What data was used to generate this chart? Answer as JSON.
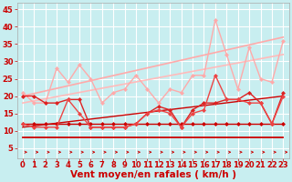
{
  "background_color": "#c8eef0",
  "grid_color": "#ffffff",
  "xlabel": "Vent moyen/en rafales ( km/h )",
  "xlabel_color": "#cc0000",
  "xlabel_fontsize": 7.5,
  "tick_color": "#cc0000",
  "tick_fontsize": 6,
  "ylim": [
    2,
    47
  ],
  "xlim": [
    -0.5,
    23.5
  ],
  "yticks": [
    5,
    10,
    15,
    20,
    25,
    30,
    35,
    40,
    45
  ],
  "xticks": [
    0,
    1,
    2,
    3,
    4,
    5,
    6,
    7,
    8,
    9,
    10,
    11,
    12,
    13,
    14,
    15,
    16,
    17,
    18,
    19,
    20,
    21,
    22,
    23
  ],
  "lines": [
    {
      "x": [
        0,
        1,
        2,
        3,
        4,
        5,
        6,
        7,
        8,
        9,
        10,
        11,
        12,
        13,
        14,
        15,
        16,
        17,
        18,
        19,
        20,
        21,
        22,
        23
      ],
      "y": [
        8,
        8,
        8,
        8,
        8,
        8,
        8,
        8,
        8,
        8,
        8,
        8,
        8,
        8,
        8,
        8,
        8,
        8,
        8,
        8,
        8,
        8,
        8,
        8
      ],
      "color": "#cc0000",
      "linewidth": 1.3,
      "marker": null,
      "markersize": 0,
      "linestyle": "-",
      "zorder": 2
    },
    {
      "x": [
        0,
        1,
        2,
        3,
        4,
        5,
        6,
        7,
        8,
        9,
        10,
        11,
        12,
        13,
        14,
        15,
        16,
        17,
        18,
        19,
        20,
        21,
        22,
        23
      ],
      "y": [
        12,
        12,
        12,
        12,
        12,
        12,
        12,
        12,
        12,
        12,
        12,
        12,
        12,
        12,
        12,
        12,
        12,
        12,
        12,
        12,
        12,
        12,
        12,
        12
      ],
      "color": "#cc0000",
      "linewidth": 1.0,
      "marker": "D",
      "markersize": 2,
      "linestyle": "-",
      "zorder": 3
    },
    {
      "x": [
        0,
        23
      ],
      "y": [
        11,
        20
      ],
      "color": "#cc0000",
      "linewidth": 1.0,
      "marker": null,
      "markersize": 0,
      "linestyle": "-",
      "zorder": 2
    },
    {
      "x": [
        0,
        1,
        2,
        3,
        4,
        5,
        6,
        7,
        8,
        9,
        10,
        11,
        12,
        13,
        14,
        15,
        16,
        17,
        18,
        19,
        20,
        21,
        22,
        23
      ],
      "y": [
        20,
        20,
        18,
        18,
        19,
        19,
        11,
        11,
        11,
        11,
        12,
        15,
        17,
        16,
        11,
        16,
        18,
        18,
        19,
        19,
        21,
        18,
        12,
        21
      ],
      "color": "#dd2222",
      "linewidth": 1.0,
      "marker": "D",
      "markersize": 2,
      "linestyle": "-",
      "zorder": 4
    },
    {
      "x": [
        0,
        1,
        2,
        3,
        4,
        5,
        6,
        7,
        8,
        9,
        10,
        11,
        12,
        13,
        14,
        15,
        16,
        17,
        18,
        19,
        20,
        21,
        22,
        23
      ],
      "y": [
        12,
        11,
        11,
        11,
        19,
        15,
        11,
        11,
        11,
        11,
        12,
        15,
        16,
        15,
        11,
        15,
        16,
        26,
        19,
        19,
        18,
        18,
        12,
        20
      ],
      "color": "#ee4444",
      "linewidth": 1.0,
      "marker": "D",
      "markersize": 2,
      "linestyle": "-",
      "zorder": 4
    },
    {
      "x": [
        0,
        23
      ],
      "y": [
        20,
        37
      ],
      "color": "#ffaaaa",
      "linewidth": 1.2,
      "marker": null,
      "markersize": 0,
      "linestyle": "-",
      "zorder": 2
    },
    {
      "x": [
        0,
        23
      ],
      "y": [
        18,
        32
      ],
      "color": "#ffbbbb",
      "linewidth": 1.2,
      "marker": null,
      "markersize": 0,
      "linestyle": "-",
      "zorder": 2
    },
    {
      "x": [
        0,
        1,
        2,
        3,
        4,
        5,
        6,
        7,
        8,
        9,
        10,
        11,
        12,
        13,
        14,
        15,
        16,
        17,
        18,
        19,
        20,
        21,
        22,
        23
      ],
      "y": [
        21,
        18,
        18,
        28,
        24,
        29,
        25,
        18,
        21,
        22,
        26,
        22,
        18,
        22,
        21,
        26,
        26,
        42,
        32,
        22,
        34,
        25,
        24,
        36
      ],
      "color": "#ffaaaa",
      "linewidth": 1.0,
      "marker": "D",
      "markersize": 2,
      "linestyle": "-",
      "zorder": 3
    }
  ],
  "arrows": {
    "color": "#cc0000"
  }
}
